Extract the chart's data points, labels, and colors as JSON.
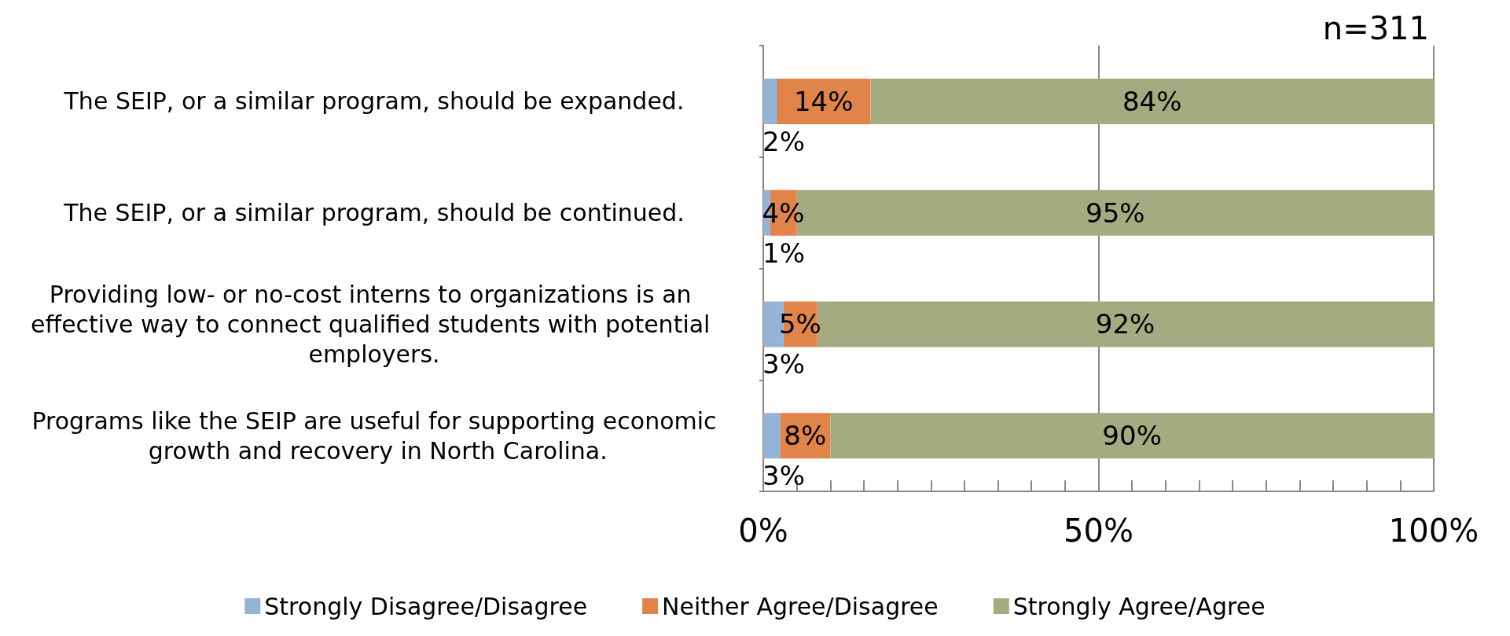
{
  "chart_data": {
    "type": "bar",
    "orientation": "horizontal",
    "stacked": true,
    "categories": [
      "The SEIP, or a similar program, should be expanded.",
      "The SEIP, or a similar program, should be continued.",
      "Providing low- or no-cost interns to organizations is an effective way to connect qualified students with potential employers.",
      "Programs like the SEIP are useful for supporting economic growth and recovery in North Carolina."
    ],
    "series": [
      {
        "name": "Strongly Disagree/Disagree",
        "color": "#95b3d7",
        "values": [
          2,
          1,
          3,
          2.5
        ],
        "value_labels": [
          "2%",
          "1%",
          "3%",
          "3%"
        ]
      },
      {
        "name": "Neither Agree/Disagree",
        "color": "#e0844a",
        "values": [
          14,
          4,
          5,
          7.5
        ],
        "value_labels": [
          "14%",
          "4%",
          "5%",
          "8%"
        ]
      },
      {
        "name": "Strongly Agree/Agree",
        "color": "#a4ab80",
        "values": [
          84,
          95,
          92,
          90
        ],
        "value_labels": [
          "84%",
          "95%",
          "92%",
          "90%"
        ]
      }
    ],
    "xlim": [
      0,
      100
    ],
    "xticks": [
      {
        "value": 0,
        "label": "0%"
      },
      {
        "value": 5,
        "label": null
      },
      {
        "value": 10,
        "label": null
      },
      {
        "value": 15,
        "label": null
      },
      {
        "value": 20,
        "label": null
      },
      {
        "value": 25,
        "label": null
      },
      {
        "value": 30,
        "label": null
      },
      {
        "value": 35,
        "label": null
      },
      {
        "value": 40,
        "label": null
      },
      {
        "value": 45,
        "label": null
      },
      {
        "value": 50,
        "label": "50%"
      },
      {
        "value": 55,
        "label": null
      },
      {
        "value": 60,
        "label": null
      },
      {
        "value": 65,
        "label": null
      },
      {
        "value": 70,
        "label": null
      },
      {
        "value": 75,
        "label": null
      },
      {
        "value": 80,
        "label": null
      },
      {
        "value": 85,
        "label": null
      },
      {
        "value": 90,
        "label": null
      },
      {
        "value": 95,
        "label": null
      },
      {
        "value": 100,
        "label": "100%"
      }
    ],
    "grid": "x",
    "legend": "bottom",
    "annotations": [
      "n=311"
    ]
  }
}
